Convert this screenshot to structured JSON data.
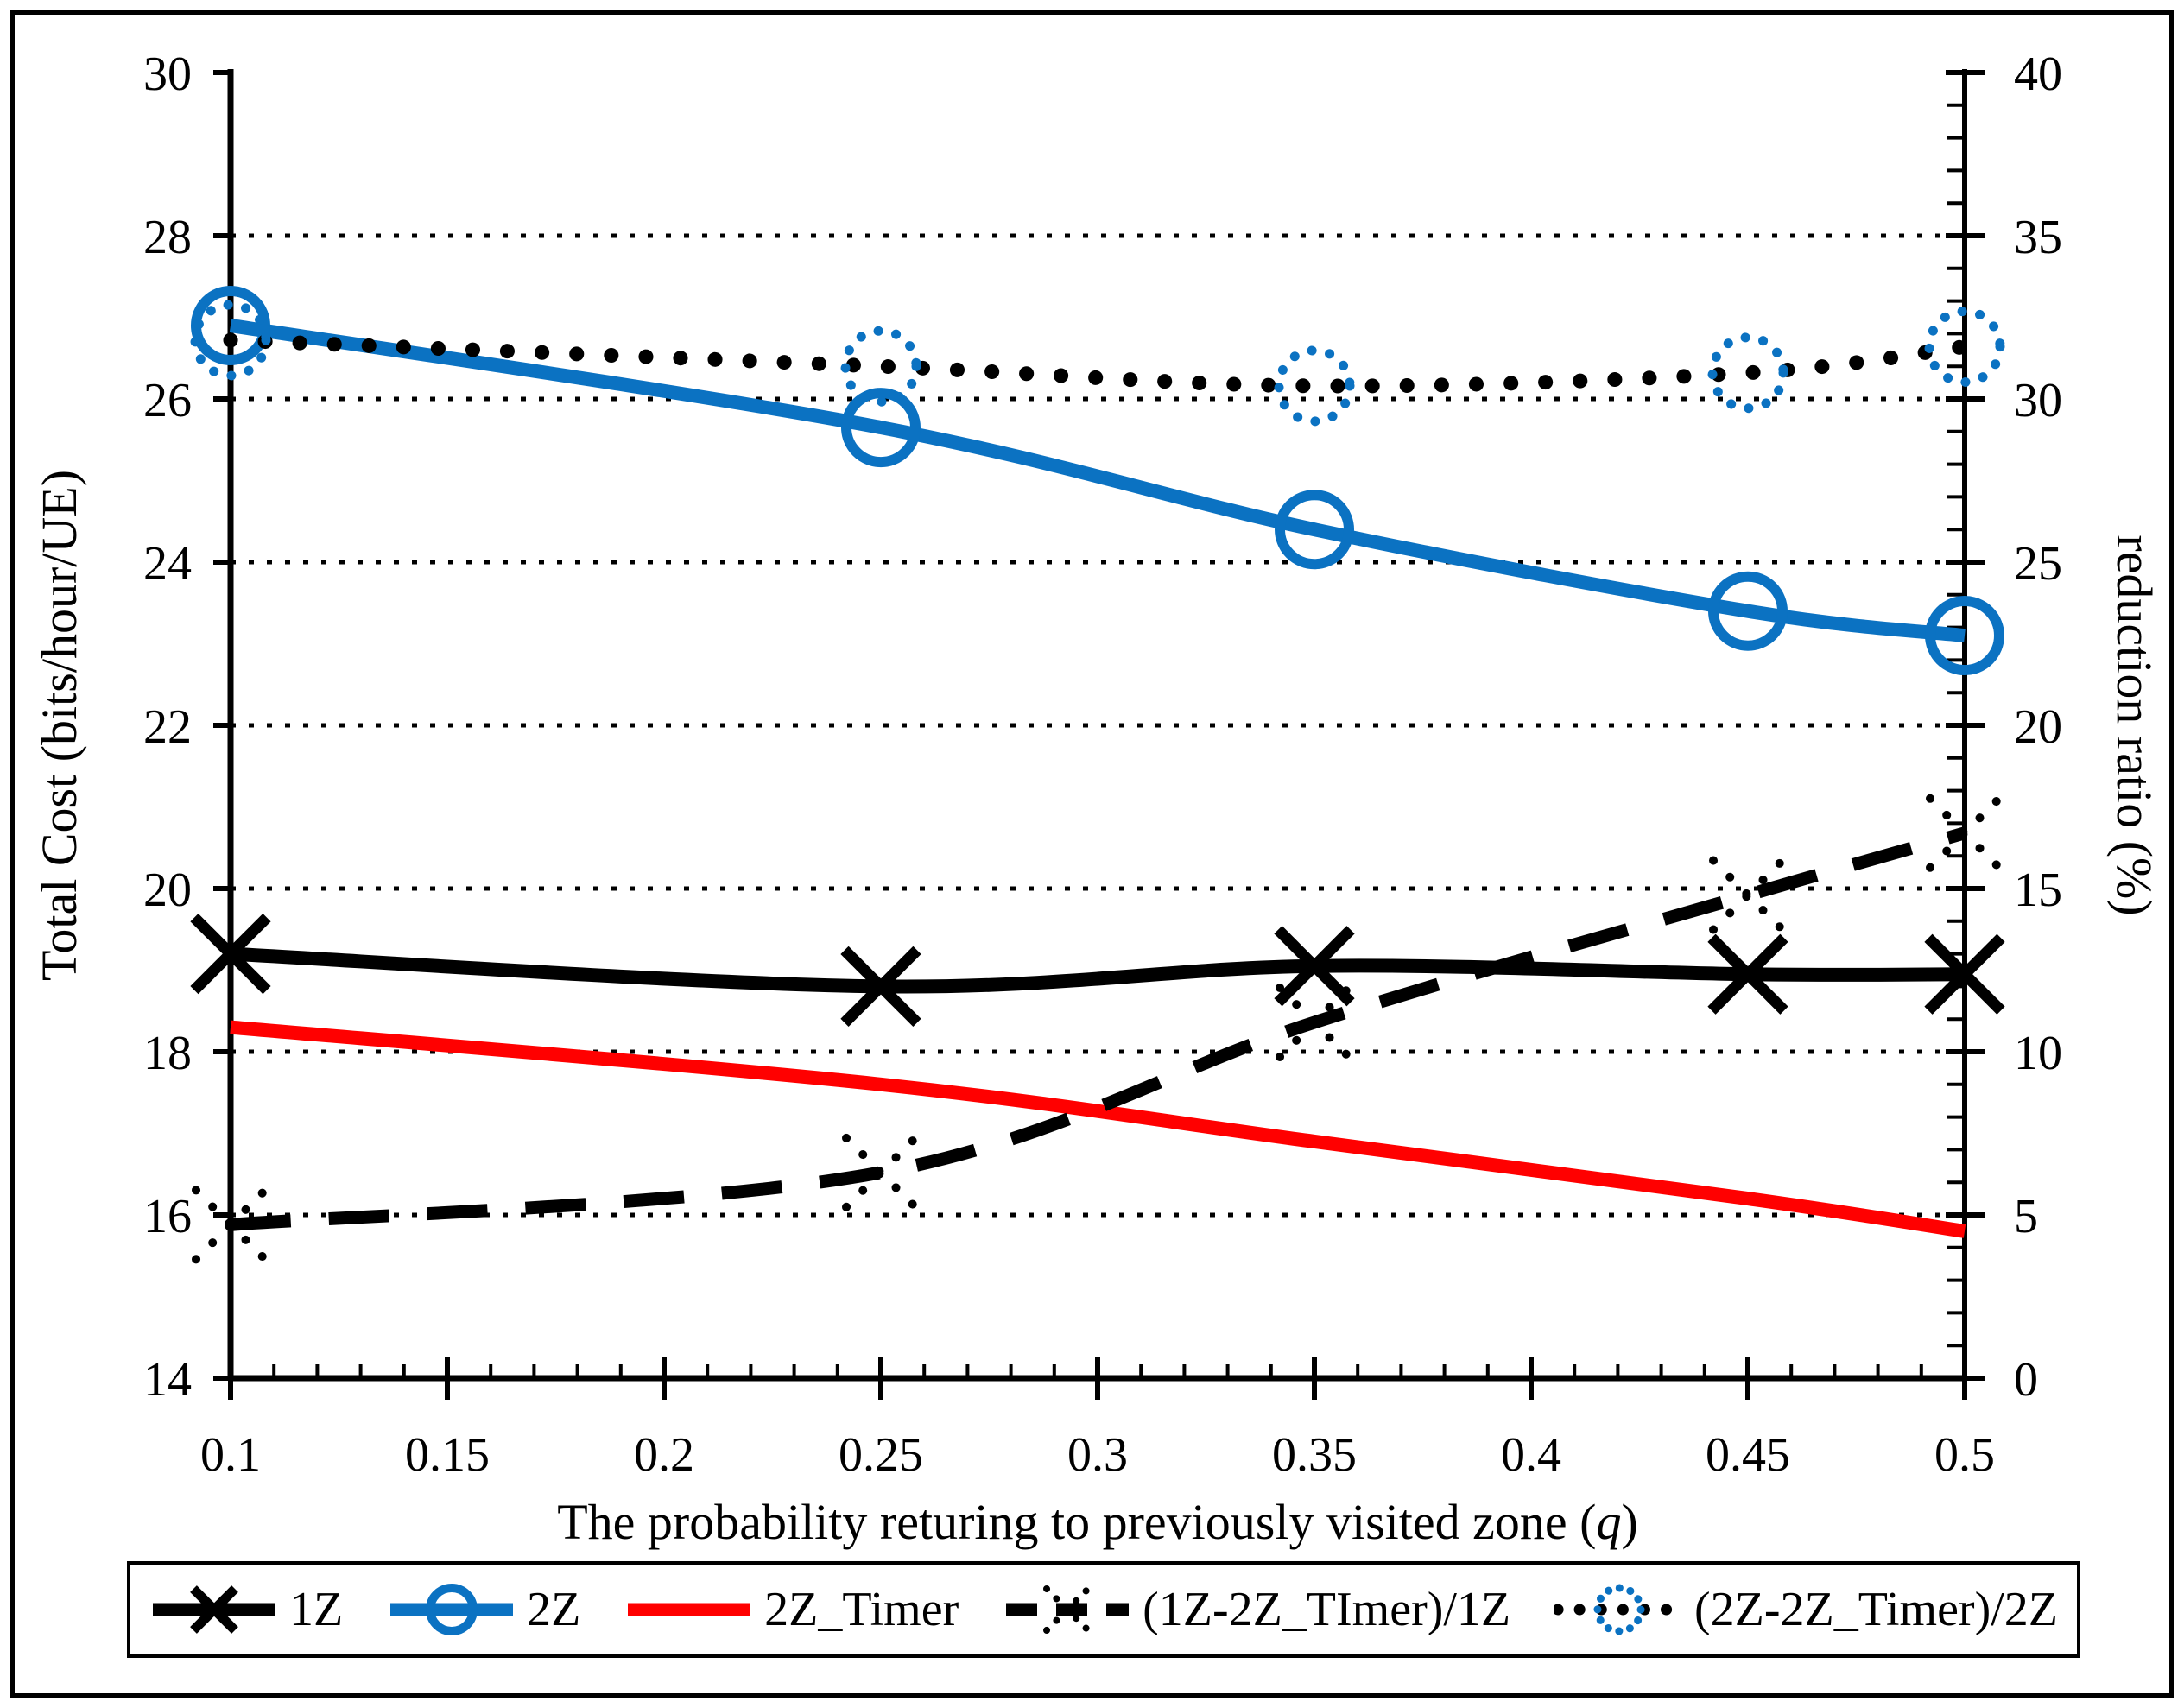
{
  "colors": {
    "blue": "#0B72C2",
    "red": "#FF0000",
    "black": "#000000"
  },
  "legend": {
    "items": [
      {
        "label": "1Z",
        "marker": "solid-x",
        "line_color": "#000000",
        "marker_color": "#000000"
      },
      {
        "label": "2Z",
        "marker": "solid-circle",
        "line_color": "#0B72C2",
        "marker_color": "#0B72C2"
      },
      {
        "label": "2Z_Timer",
        "marker": "solid",
        "line_color": "#FF0000",
        "marker_color": "#FF0000"
      },
      {
        "label": "(1Z-2Z_TImer)/1Z",
        "marker": "dashed-dotx",
        "line_color": "#000000",
        "marker_color": "#000000"
      },
      {
        "label": "(2Z-2Z_Timer)/2Z",
        "marker": "dotted-dotcircle",
        "line_color": "#000000",
        "marker_color": "#0B72C2"
      }
    ]
  },
  "chart_data": {
    "type": "line",
    "x": [
      0.1,
      0.25,
      0.35,
      0.45,
      0.5
    ],
    "x_axis": {
      "title": "The probability returing to previously visited zone (q)",
      "title_prefix": "The probability returing to previously visited zone (",
      "title_q": "q",
      "title_close": ")",
      "min": 0.1,
      "max": 0.5,
      "major_tick": 0.05,
      "minor_tick": 0.01,
      "tick_labels": [
        "0.1",
        "0.15",
        "0.2",
        "0.25",
        "0.3",
        "0.35",
        "0.4",
        "0.45",
        "0.5"
      ]
    },
    "left_axis": {
      "title": "Total Cost (bits/hour/UE)",
      "min": 14,
      "max": 30,
      "major_tick": 2,
      "tick_labels": [
        "30",
        "28",
        "26",
        "24",
        "22",
        "20",
        "18",
        "16",
        "14"
      ],
      "gridline_values": [
        28,
        26,
        24,
        22,
        20,
        18,
        16
      ]
    },
    "right_axis": {
      "title": "reduction ratio (%)",
      "min": 0,
      "max": 40,
      "major_tick": 5,
      "minor_tick": 1,
      "tick_labels": [
        "40",
        "35",
        "30",
        "25",
        "20",
        "15",
        "10",
        "5",
        "0"
      ]
    },
    "grid": "horizontal-dotted",
    "legend_position": "bottom",
    "series": [
      {
        "name": "1Z",
        "axis": "left",
        "color": "#000000",
        "style": "solid",
        "marker": "x",
        "values": [
          19.2,
          18.8,
          19.05,
          18.95,
          18.95
        ]
      },
      {
        "name": "2Z",
        "axis": "left",
        "color": "#0B72C2",
        "style": "solid",
        "marker": "circle",
        "values": [
          26.9,
          25.65,
          24.4,
          23.4,
          23.1
        ]
      },
      {
        "name": "2Z_Timer",
        "axis": "left",
        "color": "#FF0000",
        "style": "solid",
        "marker": "none",
        "values": [
          18.3,
          17.6,
          16.9,
          16.2,
          15.8
        ]
      },
      {
        "name": "(1Z-2Z_TImer)/1Z",
        "axis": "right",
        "color": "#000000",
        "style": "dashed",
        "marker": "dotted-x",
        "values": [
          4.7,
          6.3,
          10.9,
          14.8,
          16.7
        ]
      },
      {
        "name": "(2Z-2Z_Timer)/2Z",
        "axis": "right",
        "color": "#000000",
        "marker_color": "#0B72C2",
        "style": "dotted",
        "marker": "dotted-circle",
        "values": [
          31.8,
          31.0,
          30.4,
          30.8,
          31.6
        ]
      }
    ]
  }
}
